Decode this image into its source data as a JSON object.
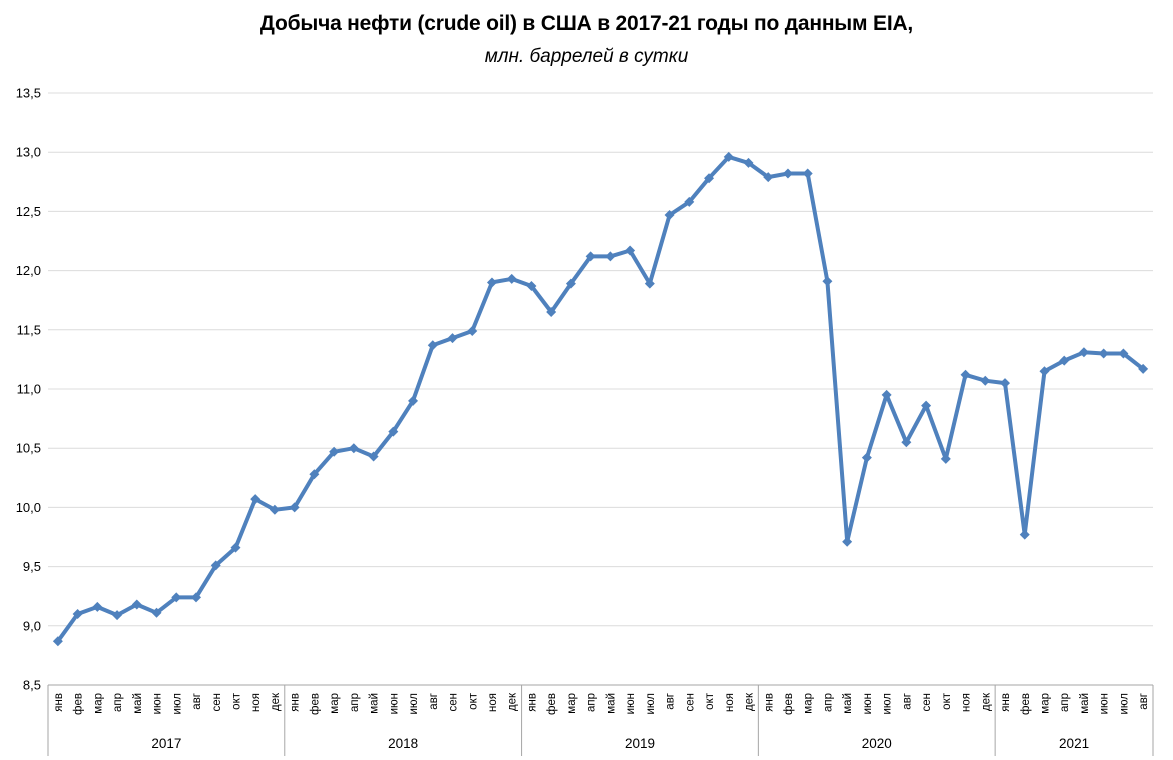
{
  "header": {
    "title": "Добыча нефти (crude oil) в США в 2017-21 годы по данным EIA,",
    "subtitle": "млн. баррелей в сутки"
  },
  "chart_data": {
    "type": "line",
    "title": "Добыча нефти (crude oil) в США в 2017-21 годы по данным EIA,",
    "subtitle": "млн. баррелей в сутки",
    "xlabel": "",
    "ylabel": "",
    "ylim": [
      8.5,
      13.5
    ],
    "ytick_step": 0.5,
    "ytick_labels": [
      "8,5",
      "9,0",
      "9,5",
      "10,0",
      "10,5",
      "11,0",
      "11,5",
      "12,0",
      "12,5",
      "13,0",
      "13,5"
    ],
    "decimal_separator": ",",
    "grid": true,
    "legend_position": "none",
    "marker": "diamond",
    "colors": {
      "line": "#4F81BD",
      "grid": "#DCDCDC",
      "axis": "#A6A6A6",
      "text": "#000000",
      "background": "#FFFFFF"
    },
    "years": [
      {
        "label": "2017",
        "months": [
          "янв",
          "фев",
          "мар",
          "апр",
          "май",
          "июн",
          "июл",
          "авг",
          "сен",
          "окт",
          "ноя",
          "дек"
        ],
        "values": [
          8.87,
          9.1,
          9.16,
          9.09,
          9.18,
          9.11,
          9.24,
          9.24,
          9.51,
          9.66,
          10.07,
          9.98
        ]
      },
      {
        "label": "2018",
        "months": [
          "янв",
          "фев",
          "мар",
          "апр",
          "май",
          "июн",
          "июл",
          "авг",
          "сен",
          "окт",
          "ноя",
          "дек"
        ],
        "values": [
          10.0,
          10.28,
          10.47,
          10.5,
          10.43,
          10.64,
          10.9,
          11.37,
          11.43,
          11.49,
          11.9,
          11.93
        ]
      },
      {
        "label": "2019",
        "months": [
          "янв",
          "фев",
          "мар",
          "апр",
          "май",
          "июн",
          "июл",
          "авг",
          "сен",
          "окт",
          "ноя",
          "дек"
        ],
        "values": [
          11.87,
          11.65,
          11.89,
          12.12,
          12.12,
          12.17,
          11.89,
          12.47,
          12.58,
          12.78,
          12.96,
          12.91
        ]
      },
      {
        "label": "2020",
        "months": [
          "янв",
          "фев",
          "мар",
          "апр",
          "май",
          "июн",
          "июл",
          "авг",
          "сен",
          "окт",
          "ноя",
          "дек"
        ],
        "values": [
          12.79,
          12.82,
          12.82,
          11.91,
          9.71,
          10.42,
          10.95,
          10.55,
          10.86,
          10.41,
          11.12,
          11.07
        ]
      },
      {
        "label": "2021",
        "months": [
          "янв",
          "фев",
          "мар",
          "апр",
          "май",
          "июн",
          "июл",
          "авг"
        ],
        "values": [
          11.05,
          9.77,
          11.15,
          11.24,
          11.31,
          11.3,
          11.3,
          11.17
        ]
      }
    ]
  }
}
